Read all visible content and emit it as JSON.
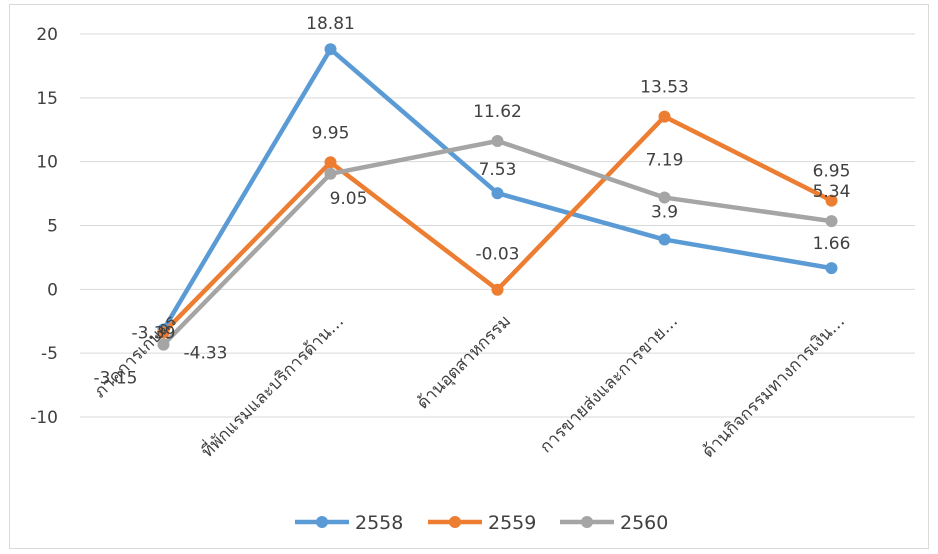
{
  "chart_data": {
    "type": "line",
    "categories": [
      "ภาคการเกษตร",
      "ที่พักแรมและบริการด้าน…",
      "ด้านอุตสาหกรรม",
      "การขายส่งและการขาย…",
      "ด้านกิจกรรมทางการเงิน…"
    ],
    "series": [
      {
        "name": "2558",
        "color": "#5B9BD5",
        "values": [
          -3.15,
          18.81,
          7.53,
          3.9,
          1.66
        ]
      },
      {
        "name": "2559",
        "color": "#ED7D31",
        "values": [
          -3.39,
          9.95,
          -0.03,
          13.53,
          6.95
        ]
      },
      {
        "name": "2560",
        "color": "#A5A5A5",
        "values": [
          -4.33,
          9.05,
          11.62,
          7.19,
          5.34
        ]
      }
    ],
    "data_labels": [
      [
        "-3.15",
        "18.81",
        "7.53",
        "3.9",
        "1.66"
      ],
      [
        "-3.39",
        "9.95",
        "-0.03",
        "13.53",
        "6.95"
      ],
      [
        "-4.33",
        "9.05",
        "11.62",
        "7.19",
        "5.34"
      ]
    ],
    "ylim": [
      -10,
      20
    ],
    "yticks": [
      "-10",
      "-5",
      "0",
      "5",
      "10",
      "15",
      "20"
    ],
    "grid": true,
    "legend_position": "bottom",
    "title": "",
    "xlabel": "",
    "ylabel": ""
  }
}
